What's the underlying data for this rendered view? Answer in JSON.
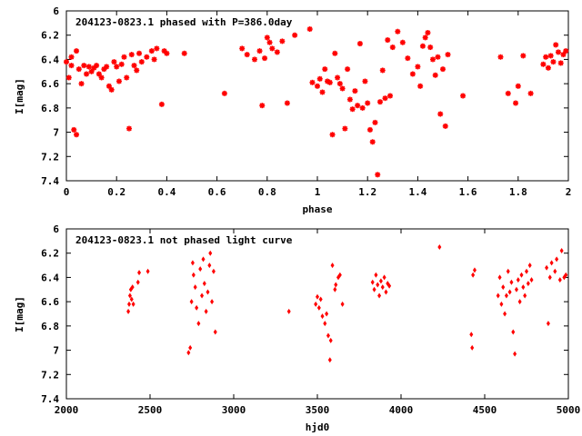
{
  "chart_data": [
    {
      "type": "scatter",
      "title": "204123-0823.1 phased with P=386.0day",
      "xlabel": "phase",
      "ylabel": "I[mag]",
      "xlim": [
        0,
        2
      ],
      "ylim": [
        7.4,
        6.0
      ],
      "y_inverted": true,
      "xticks": [
        "0",
        "0.2",
        "0.4",
        "0.6",
        "0.8",
        "1",
        "1.2",
        "1.4",
        "1.6",
        "1.8",
        "2"
      ],
      "yticks": [
        "6",
        "6.2",
        "6.4",
        "6.6",
        "6.8",
        "7",
        "7.2",
        "7.4"
      ],
      "marker": "star",
      "color": "#ff0000",
      "grid": false,
      "x": [
        0.0,
        0.01,
        0.02,
        0.02,
        0.03,
        0.04,
        0.04,
        0.05,
        0.06,
        0.07,
        0.08,
        0.09,
        0.1,
        0.11,
        0.12,
        0.13,
        0.14,
        0.15,
        0.16,
        0.17,
        0.18,
        0.19,
        0.2,
        0.21,
        0.22,
        0.23,
        0.24,
        0.25,
        0.26,
        0.27,
        0.28,
        0.29,
        0.3,
        0.32,
        0.34,
        0.35,
        0.36,
        0.38,
        0.39,
        0.4,
        0.47,
        0.63,
        0.7,
        0.72,
        0.75,
        0.77,
        0.78,
        0.79,
        0.8,
        0.81,
        0.82,
        0.84,
        0.86,
        0.88,
        0.91,
        0.97,
        0.98,
        1.0,
        1.01,
        1.02,
        1.03,
        1.04,
        1.05,
        1.06,
        1.07,
        1.08,
        1.09,
        1.1,
        1.11,
        1.12,
        1.13,
        1.14,
        1.15,
        1.16,
        1.17,
        1.18,
        1.19,
        1.2,
        1.21,
        1.22,
        1.23,
        1.24,
        1.25,
        1.26,
        1.27,
        1.28,
        1.29,
        1.3,
        1.32,
        1.34,
        1.36,
        1.38,
        1.4,
        1.41,
        1.42,
        1.43,
        1.44,
        1.45,
        1.46,
        1.47,
        1.48,
        1.49,
        1.5,
        1.51,
        1.52,
        1.58,
        1.73,
        1.76,
        1.79,
        1.8,
        1.82,
        1.85,
        1.9,
        1.91,
        1.92,
        1.93,
        1.94,
        1.95,
        1.96,
        1.97,
        1.98,
        1.99
      ],
      "y": [
        6.42,
        6.55,
        6.38,
        6.45,
        6.98,
        7.02,
        6.33,
        6.48,
        6.6,
        6.45,
        6.52,
        6.46,
        6.5,
        6.47,
        6.45,
        6.52,
        6.55,
        6.48,
        6.46,
        6.62,
        6.65,
        6.42,
        6.46,
        6.58,
        6.44,
        6.38,
        6.55,
        6.97,
        6.36,
        6.45,
        6.49,
        6.35,
        6.42,
        6.38,
        6.33,
        6.4,
        6.31,
        6.77,
        6.33,
        6.35,
        6.35,
        6.68,
        6.31,
        6.36,
        6.4,
        6.33,
        6.78,
        6.39,
        6.22,
        6.26,
        6.31,
        6.34,
        6.25,
        6.76,
        6.2,
        6.15,
        6.59,
        6.62,
        6.56,
        6.67,
        6.48,
        6.58,
        6.59,
        7.02,
        6.35,
        6.55,
        6.6,
        6.64,
        6.97,
        6.48,
        6.73,
        6.81,
        6.66,
        6.78,
        6.27,
        6.8,
        6.58,
        6.76,
        6.98,
        7.08,
        6.92,
        7.35,
        6.75,
        6.49,
        6.72,
        6.24,
        6.7,
        6.3,
        6.17,
        6.26,
        6.39,
        6.52,
        6.46,
        6.62,
        6.29,
        6.22,
        6.18,
        6.3,
        6.4,
        6.53,
        6.38,
        6.85,
        6.48,
        6.95,
        6.36,
        6.7,
        6.38,
        6.68,
        6.76,
        6.62,
        6.37,
        6.68,
        6.44,
        6.38,
        6.47,
        6.37,
        6.42,
        6.28,
        6.34,
        6.43,
        6.36,
        6.33
      ],
      "axes_ref": 0
    },
    {
      "type": "scatter",
      "title": "204123-0823.1 not phased light curve",
      "xlabel": "hjd0",
      "ylabel": "I[mag]",
      "xlim": [
        2000,
        5000
      ],
      "ylim": [
        7.4,
        6.0
      ],
      "y_inverted": true,
      "xticks": [
        "2000",
        "2500",
        "3000",
        "3500",
        "4000",
        "4500",
        "5000"
      ],
      "yticks": [
        "6",
        "6.2",
        "6.4",
        "6.6",
        "6.8",
        "7",
        "7.2",
        "7.4"
      ],
      "marker": "diamond",
      "color": "#ff0000",
      "grid": false,
      "x": [
        2370,
        2375,
        2380,
        2385,
        2390,
        2395,
        2400,
        2428,
        2435,
        2487,
        2730,
        2740,
        2748,
        2755,
        2760,
        2770,
        2778,
        2790,
        2800,
        2810,
        2818,
        2825,
        2835,
        2845,
        2855,
        2860,
        2870,
        2880,
        2890,
        3330,
        3490,
        3500,
        3510,
        3520,
        3530,
        3545,
        3555,
        3565,
        3575,
        3580,
        3590,
        3605,
        3610,
        3625,
        3635,
        3650,
        3830,
        3840,
        3850,
        3860,
        3870,
        3880,
        3890,
        3900,
        3910,
        3920,
        3930,
        4230,
        4420,
        4425,
        4430,
        4440,
        4580,
        4590,
        4600,
        4610,
        4620,
        4630,
        4640,
        4650,
        4660,
        4670,
        4680,
        4690,
        4700,
        4710,
        4720,
        4730,
        4740,
        4750,
        4760,
        4770,
        4780,
        4870,
        4880,
        4890,
        4900,
        4920,
        4930,
        4950,
        4960,
        4975,
        4985
      ],
      "y": [
        6.68,
        6.62,
        6.55,
        6.5,
        6.58,
        6.48,
        6.62,
        6.44,
        6.36,
        6.35,
        7.02,
        6.98,
        6.6,
        6.28,
        6.38,
        6.48,
        6.65,
        6.78,
        6.33,
        6.55,
        6.25,
        6.45,
        6.68,
        6.52,
        6.3,
        6.2,
        6.6,
        6.35,
        6.85,
        6.68,
        6.62,
        6.56,
        6.65,
        6.58,
        6.72,
        6.78,
        6.7,
        6.88,
        7.08,
        6.92,
        6.3,
        6.5,
        6.46,
        6.4,
        6.38,
        6.62,
        6.44,
        6.5,
        6.38,
        6.46,
        6.55,
        6.43,
        6.48,
        6.4,
        6.52,
        6.45,
        6.47,
        6.15,
        6.87,
        6.98,
        6.38,
        6.34,
        6.55,
        6.4,
        6.62,
        6.48,
        6.7,
        6.55,
        6.35,
        6.52,
        6.44,
        6.85,
        7.03,
        6.5,
        6.42,
        6.6,
        6.38,
        6.48,
        6.55,
        6.35,
        6.45,
        6.3,
        6.42,
        6.32,
        6.78,
        6.4,
        6.28,
        6.35,
        6.25,
        6.42,
        6.18,
        6.4,
        6.38
      ],
      "axes_ref": 1
    }
  ]
}
